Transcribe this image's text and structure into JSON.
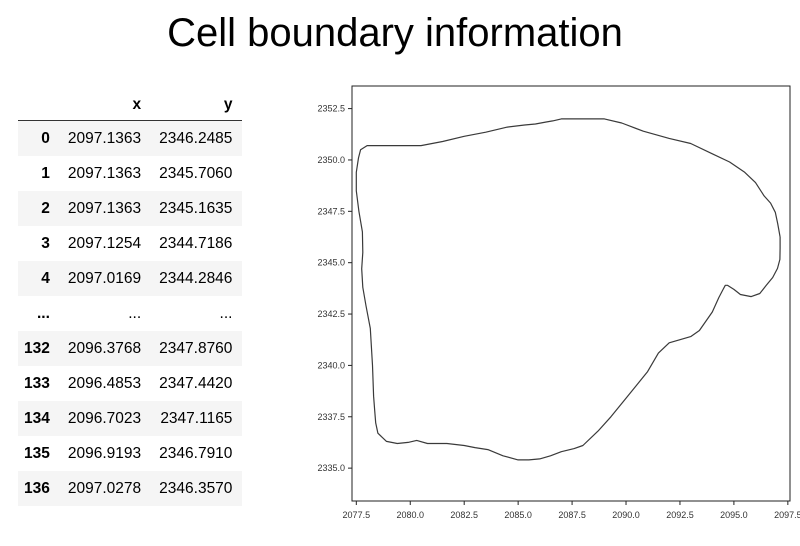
{
  "title": "Cell boundary information",
  "table": {
    "columns": [
      "x",
      "y"
    ],
    "rows": [
      {
        "index": "0",
        "x": "2097.1363",
        "y": "2346.2485"
      },
      {
        "index": "1",
        "x": "2097.1363",
        "y": "2345.7060"
      },
      {
        "index": "2",
        "x": "2097.1363",
        "y": "2345.1635"
      },
      {
        "index": "3",
        "x": "2097.1254",
        "y": "2344.7186"
      },
      {
        "index": "4",
        "x": "2097.0169",
        "y": "2344.2846"
      },
      {
        "index": "...",
        "x": "...",
        "y": "..."
      },
      {
        "index": "132",
        "x": "2096.3768",
        "y": "2347.8760"
      },
      {
        "index": "133",
        "x": "2096.4853",
        "y": "2347.4420"
      },
      {
        "index": "134",
        "x": "2096.7023",
        "y": "2347.1165"
      },
      {
        "index": "135",
        "x": "2096.9193",
        "y": "2346.7910"
      },
      {
        "index": "136",
        "x": "2097.0278",
        "y": "2346.3570"
      }
    ]
  },
  "chart_data": {
    "type": "line",
    "title": "",
    "xlabel": "",
    "ylabel": "",
    "xlim": [
      2077.3,
      2097.6
    ],
    "ylim": [
      2333.4,
      2353.6
    ],
    "xticks": [
      "2077.5",
      "2080.0",
      "2082.5",
      "2085.0",
      "2087.5",
      "2090.0",
      "2092.5",
      "2095.0",
      "2097.5"
    ],
    "yticks": [
      "2335.0",
      "2337.5",
      "2340.0",
      "2342.5",
      "2345.0",
      "2347.5",
      "2350.0",
      "2352.5"
    ],
    "grid": false,
    "line_color": "#3a3a3a",
    "series": [
      {
        "x": [
          2097.14,
          2097.14,
          2097.13,
          2097.02,
          2096.8,
          2096.5,
          2096.2,
          2095.8,
          2095.3,
          2095.0,
          2094.7,
          2094.6,
          2094.5,
          2094.3,
          2094.0,
          2093.4,
          2093.0,
          2092.5,
          2092.0,
          2091.5,
          2091.0,
          2090.0,
          2089.3,
          2088.7,
          2088.0,
          2087.6,
          2087.0,
          2086.5,
          2086.0,
          2085.5,
          2085.0,
          2084.3,
          2083.6,
          2083.0,
          2082.5,
          2081.7,
          2080.8,
          2080.3,
          2079.9,
          2079.4,
          2078.9,
          2078.5,
          2078.4,
          2078.35,
          2078.3,
          2078.25,
          2078.15,
          2077.95,
          2077.8,
          2077.75,
          2077.8,
          2077.78,
          2077.62,
          2077.5,
          2077.5,
          2077.6,
          2077.7,
          2078.0,
          2078.8,
          2079.5,
          2080.5,
          2081.5,
          2082.5,
          2083.5,
          2084.5,
          2085.3,
          2085.8,
          2086.3,
          2086.6,
          2087.0,
          2088.0,
          2089.0,
          2089.8,
          2090.8,
          2092.0,
          2093.0,
          2094.0,
          2094.8,
          2095.5,
          2096.0,
          2096.4,
          2096.7,
          2096.92,
          2097.03,
          2097.14
        ],
        "y": [
          2346.25,
          2345.71,
          2345.16,
          2344.72,
          2344.28,
          2343.9,
          2343.5,
          2343.35,
          2343.45,
          2343.7,
          2343.9,
          2343.9,
          2343.7,
          2343.3,
          2342.6,
          2341.7,
          2341.4,
          2341.25,
          2341.1,
          2340.6,
          2339.7,
          2338.4,
          2337.5,
          2336.8,
          2336.1,
          2335.95,
          2335.8,
          2335.6,
          2335.45,
          2335.4,
          2335.4,
          2335.6,
          2335.9,
          2336.0,
          2336.1,
          2336.2,
          2336.2,
          2336.35,
          2336.25,
          2336.2,
          2336.3,
          2336.7,
          2337.2,
          2337.8,
          2338.5,
          2340.0,
          2341.8,
          2342.9,
          2343.8,
          2344.7,
          2345.5,
          2346.5,
          2347.5,
          2348.5,
          2349.4,
          2350.1,
          2350.5,
          2350.7,
          2350.7,
          2350.7,
          2350.7,
          2350.9,
          2351.15,
          2351.35,
          2351.6,
          2351.7,
          2351.75,
          2351.85,
          2351.9,
          2352.0,
          2352.0,
          2352.0,
          2351.8,
          2351.4,
          2351.05,
          2350.8,
          2350.3,
          2349.9,
          2349.4,
          2348.9,
          2348.25,
          2347.9,
          2347.45,
          2346.9,
          2346.25
        ]
      }
    ]
  }
}
